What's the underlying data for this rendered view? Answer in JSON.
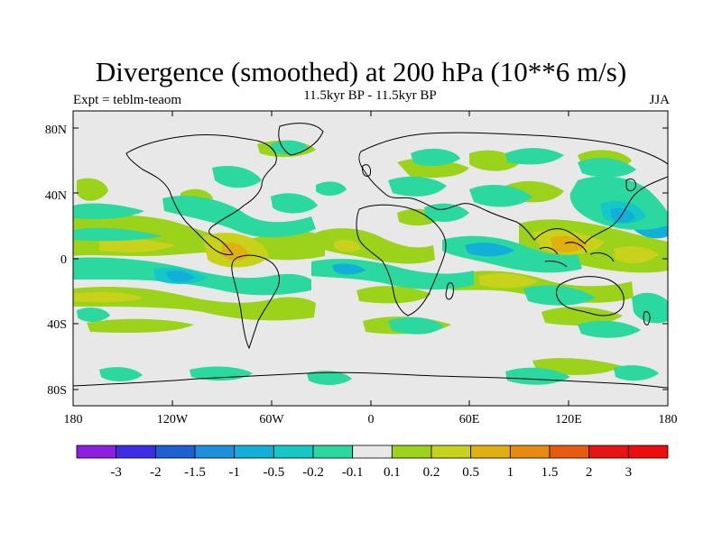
{
  "title": "Divergence (smoothed) at 200 hPa (10**6 m/s)",
  "subtitle": "11.5kyr BP - 11.5kyr BP",
  "experiment": "Expt = teblm-teaom",
  "season": "JJA",
  "latitude_labels": [
    "80N",
    "40N",
    "0",
    "40S",
    "80S"
  ],
  "longitude_labels": [
    "180",
    "120W",
    "60W",
    "0",
    "60E",
    "120E",
    "180"
  ],
  "colorbar": {
    "labels": [
      "-3",
      "-2",
      "-1.5",
      "-1",
      "-0.5",
      "-0.2",
      "-0.1",
      "0.1",
      "0.2",
      "0.5",
      "1",
      "1.5",
      "2",
      "3"
    ],
    "colors": [
      "#8c1fe0",
      "#3d2ee6",
      "#1f5fd6",
      "#1e8fdc",
      "#12b0d8",
      "#14c8c8",
      "#2ad8a0",
      "#e8e8e8",
      "#9bd21a",
      "#c8d21a",
      "#e0b010",
      "#e88a10",
      "#e85a10",
      "#e81414",
      "#ee0d0d"
    ]
  },
  "field_colors": {
    "neutral": "#e8e8e8",
    "pos_02": "#9bd21a",
    "pos_05": "#c8d21a",
    "pos_1": "#e0b010",
    "neg_01": "#2ad8a0",
    "neg_02": "#14c8c8",
    "neg_05": "#12b0d8",
    "coast": "#000000"
  }
}
